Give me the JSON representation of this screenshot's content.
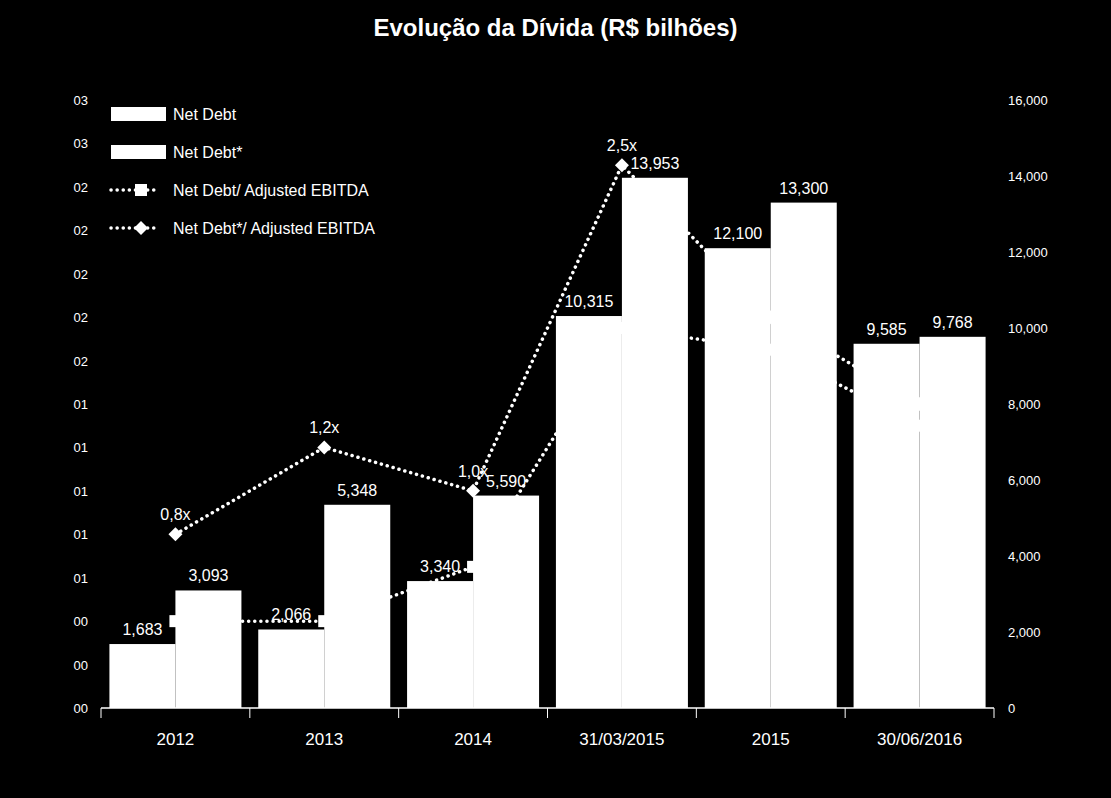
{
  "chart_data": {
    "type": "bar",
    "title": "Evolução da Dívida (R$ bilhões)",
    "categories": [
      "2012",
      "2013",
      "2014",
      "31/03/2015",
      "2015",
      "30/06/2016"
    ],
    "series": [
      {
        "name": "Net Debt",
        "type": "bar",
        "color": "#ffffff",
        "axis": "y2",
        "data_labels": true,
        "values": [
          1683,
          2066,
          3340,
          10315,
          12100,
          9585
        ],
        "value_labels": [
          "1,683",
          "2,066",
          "3,340",
          "10,315",
          "12,100",
          "9,585"
        ]
      },
      {
        "name": "Net Debt*",
        "type": "bar",
        "color": "#ffffff",
        "axis": "y2",
        "data_labels": true,
        "values": [
          3093,
          5348,
          5590,
          13953,
          13300,
          9768
        ],
        "value_labels": [
          "3,093",
          "5,348",
          "5,590",
          "13,953",
          "13,300",
          "9,768"
        ]
      },
      {
        "name": "Net Debt/ Adjusted EBITDA",
        "type": "line",
        "color": "#ffffff",
        "marker": "square",
        "line_style": "dotted",
        "data_labels": false,
        "values": [
          0.4,
          0.4,
          0.65,
          1.75,
          1.65,
          1.3
        ]
      },
      {
        "name": "Net Debt*/ Adjusted EBITDA",
        "type": "line",
        "color": "#ffffff",
        "marker": "diamond",
        "line_style": "dotted",
        "data_labels": true,
        "values": [
          0.8,
          1.2,
          1.0,
          2.5,
          1.8,
          1.4
        ],
        "value_labels": [
          "0,8x",
          "1,2x",
          "1,0x",
          "2,5x",
          null,
          null
        ]
      }
    ],
    "ylim": [
      0,
      2.8
    ],
    "yticks": [
      {
        "value": 0,
        "label": "00"
      },
      {
        "value": 0.2,
        "label": "00"
      },
      {
        "value": 0.4,
        "label": "00"
      },
      {
        "value": 0.6,
        "label": "01"
      },
      {
        "value": 0.8,
        "label": "01"
      },
      {
        "value": 1.0,
        "label": "01"
      },
      {
        "value": 1.2,
        "label": "01"
      },
      {
        "value": 1.4,
        "label": "01"
      },
      {
        "value": 1.6,
        "label": "02"
      },
      {
        "value": 1.8,
        "label": "02"
      },
      {
        "value": 2.0,
        "label": "02"
      },
      {
        "value": 2.2,
        "label": "02"
      },
      {
        "value": 2.4,
        "label": "02"
      },
      {
        "value": 2.6,
        "label": "03"
      },
      {
        "value": 2.8,
        "label": "03"
      }
    ],
    "y2lim": [
      0,
      16000
    ],
    "y2ticks": [
      0,
      {
        "value": 2000,
        "label": "2,000"
      },
      {
        "value": 4000,
        "label": "4,000"
      },
      {
        "value": 6000,
        "label": "6,000"
      },
      {
        "value": 8000,
        "label": "8,000"
      },
      {
        "value": 10000,
        "label": "10,000"
      },
      {
        "value": 12000,
        "label": "12,000"
      },
      {
        "value": 14000,
        "label": "14,000"
      },
      {
        "value": 16000,
        "label": "16,000"
      }
    ],
    "grid": false,
    "legend": "top-left"
  }
}
